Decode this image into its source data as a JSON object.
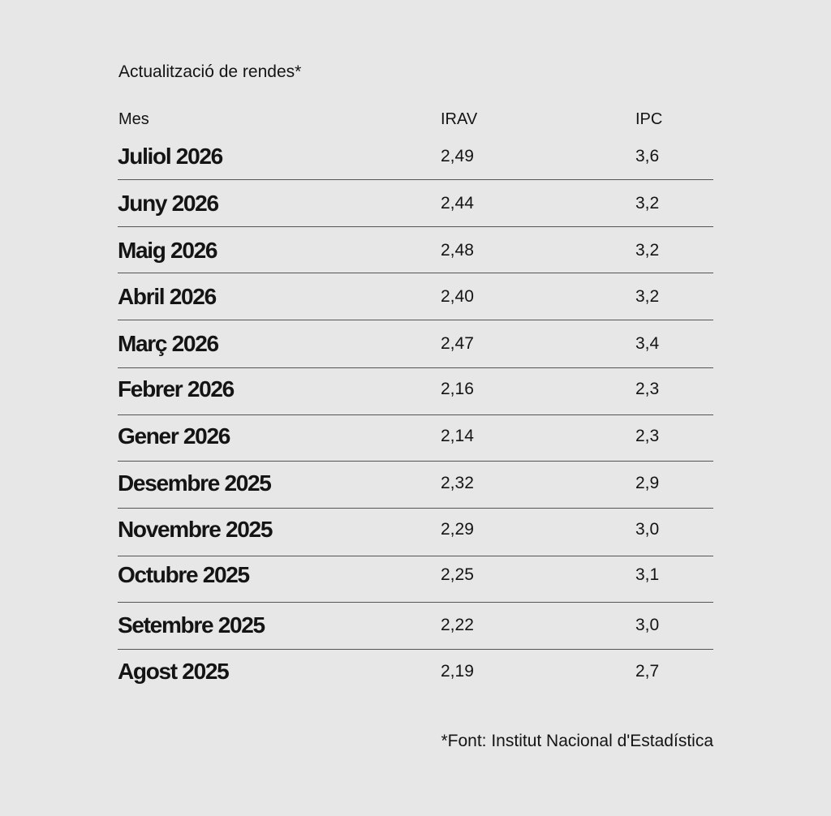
{
  "title": "Actualització de rendes*",
  "columns": {
    "mes": "Mes",
    "irav": "IRAV",
    "ipc": "IPC"
  },
  "rows": [
    {
      "mes": "Juliol 2026",
      "irav": "2,49",
      "ipc": "3,6"
    },
    {
      "mes": "Juny 2026",
      "irav": "2,44",
      "ipc": "3,2"
    },
    {
      "mes": "Maig 2026",
      "irav": "2,48",
      "ipc": "3,2"
    },
    {
      "mes": "Abril 2026",
      "irav": "2,40",
      "ipc": "3,2"
    },
    {
      "mes": "Març 2026",
      "irav": "2,47",
      "ipc": "3,4"
    },
    {
      "mes": "Febrer 2026",
      "irav": "2,16",
      "ipc": "2,3"
    },
    {
      "mes": "Gener 2026",
      "irav": "2,14",
      "ipc": "2,3"
    },
    {
      "mes": "Desembre 2025",
      "irav": "2,32",
      "ipc": "2,9"
    },
    {
      "mes": "Novembre 2025",
      "irav": "2,29",
      "ipc": "3,0"
    },
    {
      "mes": "Octubre 2025",
      "irav": "2,25",
      "ipc": "3,1"
    },
    {
      "mes": "Setembre 2025",
      "irav": "2,22",
      "ipc": "3,0"
    },
    {
      "mes": "Agost 2025",
      "irav": "2,19",
      "ipc": "2,7"
    }
  ],
  "source": "*Font: Institut Nacional d'Estadística",
  "colors": {
    "background": "#e7e7e7",
    "text": "#141414",
    "rule": "#555555"
  }
}
